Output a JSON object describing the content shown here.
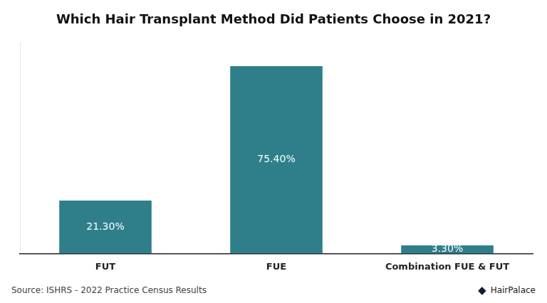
{
  "chart_data": {
    "type": "bar",
    "title": "Which Hair Transplant Method Did Patients Choose in 2021?",
    "categories": [
      "FUT",
      "FUE",
      "Combination FUE & FUT"
    ],
    "values": [
      21.3,
      75.4,
      3.3
    ],
    "value_labels": [
      "21.30%",
      "75.40%",
      "3.30%"
    ],
    "color": "#2e7f8a",
    "ylim": [
      0,
      85
    ],
    "grid": false,
    "data_labels": true,
    "tick_labels": "x",
    "annotations": [
      "Source: ISHRS - 2022 Practice Census Results",
      "◆",
      "HairPalace"
    ]
  }
}
